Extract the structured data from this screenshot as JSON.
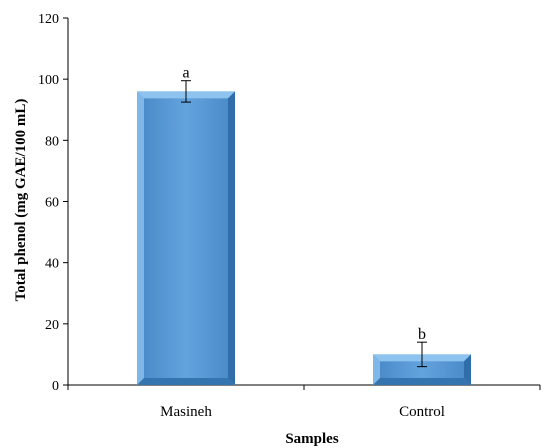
{
  "chart_data": {
    "type": "bar",
    "title": "",
    "xlabel": "Samples",
    "ylabel": "Total phenol (mg GAE/100 mL)",
    "categories": [
      "Masineh",
      "Control"
    ],
    "values": [
      96,
      10
    ],
    "error": [
      3.5,
      4
    ],
    "significance": [
      "a",
      "b"
    ],
    "ylim": [
      0,
      120
    ],
    "yticks": [
      0,
      20,
      40,
      60,
      80,
      100,
      120
    ],
    "grid": false,
    "legend": "none",
    "colors": {
      "bar_face": "#5b9bd5",
      "bar_light": "#8ec3f0",
      "bar_dark": "#2f6ea8"
    }
  }
}
